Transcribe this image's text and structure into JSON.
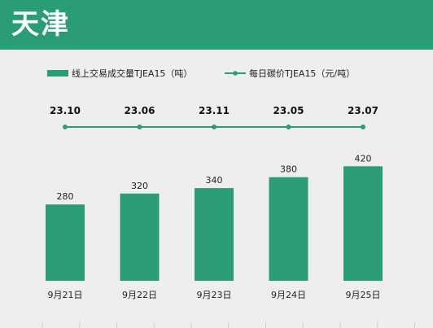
{
  "header": {
    "title": "天津"
  },
  "colors": {
    "bar": "#2a9d78",
    "line": "#2a9d78",
    "header": "#2a9d78",
    "background": "#eeeeee"
  },
  "chart_data": {
    "type": "bar",
    "categories": [
      "9月21日",
      "9月22日",
      "9月23日",
      "9月24日",
      "9月25日"
    ],
    "series": [
      {
        "name": "线上交易成交量TJEA15（吨）",
        "type": "bar",
        "values": [
          280,
          320,
          340,
          380,
          420
        ]
      },
      {
        "name": "每日碳价TJEA15（元/吨）",
        "type": "line",
        "values": [
          23.1,
          23.06,
          23.11,
          23.05,
          23.07
        ],
        "labels": [
          "23.10",
          "23.06",
          "23.11",
          "23.05",
          "23.07"
        ]
      }
    ],
    "legend": "top",
    "grid": false
  }
}
